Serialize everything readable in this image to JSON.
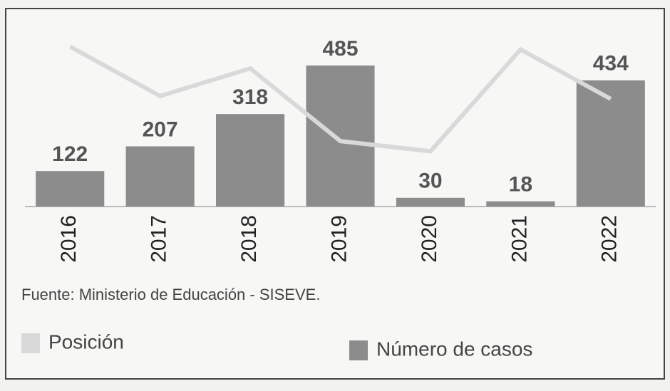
{
  "chart_data": {
    "type": "bar_line",
    "categories": [
      "2016",
      "2017",
      "2018",
      "2019",
      "2020",
      "2021",
      "2022"
    ],
    "series": [
      {
        "name": "Posición",
        "type": "line",
        "color": "#d9d9d9",
        "values": [
          550,
          380,
          475,
          225,
          190,
          540,
          370
        ]
      },
      {
        "name": "Número de casos",
        "type": "bar",
        "color": "#8c8c8c",
        "values": [
          122,
          207,
          318,
          485,
          30,
          18,
          434
        ]
      }
    ],
    "ylim": [
      0,
      600
    ],
    "source": "Fuente: Ministerio de Educación - SISEVE."
  }
}
